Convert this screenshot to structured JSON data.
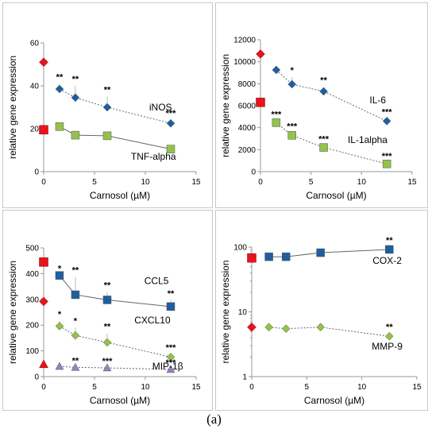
{
  "figure_label": "(a)",
  "colors": {
    "control": "#e8141c",
    "blue": "#1f5fa0",
    "green": "#93c24a",
    "purple": "#9b7fc1",
    "error_bar": "#bbbbbb",
    "axis": "#999999",
    "connector": "#666666"
  },
  "chart_data": [
    {
      "type": "scatter",
      "xlabel": "Carnosol (µM)",
      "ylabel": "relative gene expression",
      "xlim": [
        0,
        15
      ],
      "ylim": [
        0,
        60
      ],
      "xticks": [
        0,
        5,
        10,
        15
      ],
      "yticks": [
        0,
        20,
        40,
        60
      ],
      "log_y": false,
      "series": [
        {
          "name": "iNOS",
          "color": "blue",
          "shape": "diamond",
          "line": "dotted",
          "control": 51,
          "control_shape": "diamond",
          "x": [
            1.56,
            3.12,
            6.25,
            12.5
          ],
          "y": [
            38.5,
            34.5,
            30,
            22.5
          ],
          "err": [
            2.5,
            5.5,
            5,
            1.5
          ],
          "sig": [
            "**",
            "**",
            "**",
            "***"
          ],
          "label_pos": [
            11.5,
            28.5
          ]
        },
        {
          "name": "TNF-alpha",
          "color": "green",
          "shape": "square",
          "line": "solid",
          "control": 19.5,
          "control_shape": "square",
          "x": [
            1.56,
            3.12,
            6.25,
            12.5
          ],
          "y": [
            21,
            17,
            16.7,
            10.5
          ],
          "err": [
            1.5,
            1,
            0.5,
            1
          ],
          "sig": [
            "",
            "",
            "",
            ""
          ],
          "label_pos": [
            10.8,
            5.5
          ]
        }
      ]
    },
    {
      "type": "scatter",
      "xlabel": "Carnosol (µM)",
      "ylabel": "relative gene expression",
      "xlim": [
        0,
        15
      ],
      "ylim": [
        0,
        12000
      ],
      "xticks": [
        0,
        5,
        10,
        15
      ],
      "yticks": [
        0,
        2000,
        4000,
        6000,
        8000,
        10000,
        12000
      ],
      "log_y": false,
      "series": [
        {
          "name": "IL-6",
          "color": "blue",
          "shape": "diamond",
          "line": "dotted",
          "control": 10700,
          "control_shape": "diamond",
          "x": [
            1.56,
            3.12,
            6.25,
            12.5
          ],
          "y": [
            9250,
            7950,
            7300,
            4600
          ],
          "err": [
            300,
            650,
            400,
            200
          ],
          "sig": [
            "",
            "*",
            "**",
            "***"
          ],
          "label_pos": [
            11.6,
            6200
          ]
        },
        {
          "name": "IL-1alpha",
          "color": "green",
          "shape": "square",
          "line": "dotted",
          "control": 6300,
          "control_shape": "square",
          "x": [
            1.56,
            3.12,
            6.25,
            12.5
          ],
          "y": [
            4450,
            3300,
            2200,
            700
          ],
          "err": [
            150,
            200,
            150,
            100
          ],
          "sig": [
            "***",
            "***",
            "***",
            "***"
          ],
          "label_pos": [
            10.6,
            2600
          ]
        }
      ]
    },
    {
      "type": "scatter",
      "xlabel": "Carnosol (µM)",
      "ylabel": "relative gene expression",
      "xlim": [
        0,
        15
      ],
      "ylim": [
        0,
        500
      ],
      "xticks": [
        0,
        5,
        10,
        15
      ],
      "yticks": [
        0,
        100,
        200,
        300,
        400,
        500
      ],
      "log_y": false,
      "series": [
        {
          "name": "CCL5",
          "color": "blue",
          "shape": "square",
          "line": "solid",
          "control": 445,
          "control_shape": "square",
          "x": [
            1.56,
            3.12,
            6.25,
            12.5
          ],
          "y": [
            393,
            318,
            298,
            272
          ],
          "err": [
            0,
            70,
            30,
            25
          ],
          "sig": [
            "*",
            "**",
            "**",
            "**"
          ],
          "label_pos": [
            11.1,
            360
          ]
        },
        {
          "name": "CXCL10",
          "color": "green",
          "shape": "diamond",
          "line": "dotted",
          "control": 292,
          "control_shape": "diamond",
          "x": [
            1.56,
            3.12,
            6.25,
            12.5
          ],
          "y": [
            196,
            160,
            133,
            76
          ],
          "err": [
            20,
            30,
            35,
            10
          ],
          "sig": [
            "*",
            "*",
            "**",
            "***"
          ],
          "label_pos": [
            10.7,
            207
          ]
        },
        {
          "name": "MIP-1β",
          "color": "purple",
          "shape": "triangle",
          "line": "dotted",
          "control": 48,
          "control_shape": "triangle",
          "x": [
            1.56,
            3.12,
            6.25,
            12.5
          ],
          "y": [
            40,
            36,
            34,
            28
          ],
          "err": [
            0,
            0,
            0,
            0
          ],
          "sig": [
            "",
            "**",
            "***",
            "***"
          ],
          "label_pos": [
            12.2,
            28
          ]
        }
      ]
    },
    {
      "type": "scatter",
      "xlabel": "Carnosol (µM)",
      "ylabel": "relative gene expression",
      "xlim": [
        0,
        15
      ],
      "ylim": [
        1,
        100
      ],
      "xticks": [
        0,
        5,
        10,
        15
      ],
      "yticks": [
        1,
        10,
        100
      ],
      "log_y": true,
      "series": [
        {
          "name": "COX-2",
          "color": "blue",
          "shape": "square",
          "line": "solid",
          "control": 68,
          "control_shape": "square",
          "x": [
            1.56,
            3.12,
            6.25,
            12.5
          ],
          "y": [
            71,
            71,
            82,
            92
          ],
          "err": [
            0,
            0,
            0,
            0
          ],
          "sig": [
            "",
            "",
            "",
            "**"
          ],
          "label_pos": [
            12.3,
            55
          ]
        },
        {
          "name": "MMP-9",
          "color": "green",
          "shape": "diamond",
          "line": "dotted",
          "control": 5.8,
          "control_shape": "diamond",
          "x": [
            1.56,
            3.12,
            6.25,
            12.5
          ],
          "y": [
            5.8,
            5.5,
            5.8,
            4.2
          ],
          "err": [
            0,
            0,
            0,
            0
          ],
          "sig": [
            "",
            "",
            "",
            "**"
          ],
          "label_pos": [
            12.3,
            2.6
          ]
        }
      ]
    }
  ]
}
